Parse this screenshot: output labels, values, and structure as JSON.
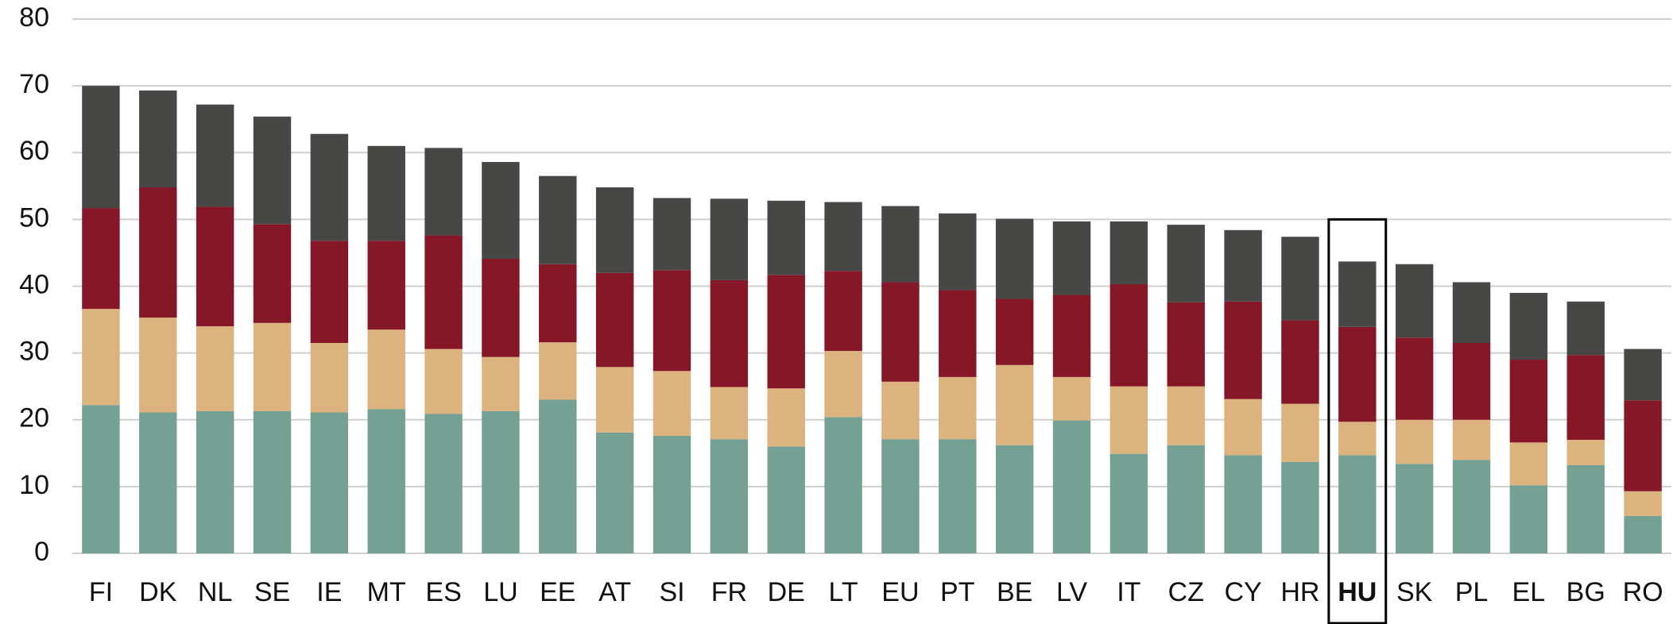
{
  "chart_data": {
    "type": "stacked_bar",
    "categories": [
      "FI",
      "DK",
      "NL",
      "SE",
      "IE",
      "MT",
      "ES",
      "LU",
      "EE",
      "AT",
      "SI",
      "FR",
      "DE",
      "LT",
      "EU",
      "PT",
      "BE",
      "LV",
      "IT",
      "CZ",
      "CY",
      "HR",
      "HU",
      "SK",
      "PL",
      "EL",
      "BG",
      "RO"
    ],
    "series": [
      {
        "color": "#75a194",
        "values": [
          22.2,
          21.1,
          21.3,
          21.3,
          21.1,
          21.6,
          20.9,
          21.3,
          23.0,
          18.1,
          17.6,
          17.1,
          16.0,
          20.4,
          17.1,
          17.1,
          16.2,
          19.9,
          14.9,
          16.2,
          14.7,
          13.7,
          14.7,
          13.4,
          14.0,
          10.2,
          13.2,
          5.6
        ]
      },
      {
        "color": "#dcb27e",
        "values": [
          14.4,
          14.2,
          12.7,
          13.2,
          10.4,
          11.9,
          9.7,
          8.1,
          8.6,
          9.8,
          9.7,
          7.8,
          8.7,
          9.9,
          8.6,
          9.3,
          12.0,
          6.5,
          10.1,
          8.8,
          8.4,
          8.7,
          5.0,
          6.6,
          6.0,
          6.4,
          3.8,
          3.7
        ]
      },
      {
        "color": "#851727",
        "values": [
          15.1,
          19.5,
          17.9,
          14.8,
          15.3,
          13.3,
          17.0,
          14.7,
          11.7,
          14.1,
          15.1,
          16.0,
          17.0,
          12.0,
          14.9,
          13.0,
          9.9,
          12.3,
          15.3,
          12.6,
          14.6,
          12.5,
          14.2,
          12.3,
          11.5,
          12.4,
          12.7,
          13.6
        ]
      },
      {
        "color": "#474746",
        "values": [
          18.3,
          14.5,
          15.3,
          16.1,
          16.0,
          14.2,
          13.1,
          14.5,
          13.2,
          12.8,
          10.8,
          12.2,
          11.1,
          10.3,
          11.4,
          11.5,
          12.0,
          11.0,
          9.4,
          11.6,
          10.7,
          12.5,
          9.8,
          11.0,
          9.1,
          10.0,
          8.0,
          7.7
        ]
      }
    ],
    "highlight_index": 22,
    "ylim": [
      0,
      80
    ],
    "yticks": [
      0,
      10,
      20,
      30,
      40,
      50,
      60,
      70,
      80
    ],
    "grid": true
  }
}
